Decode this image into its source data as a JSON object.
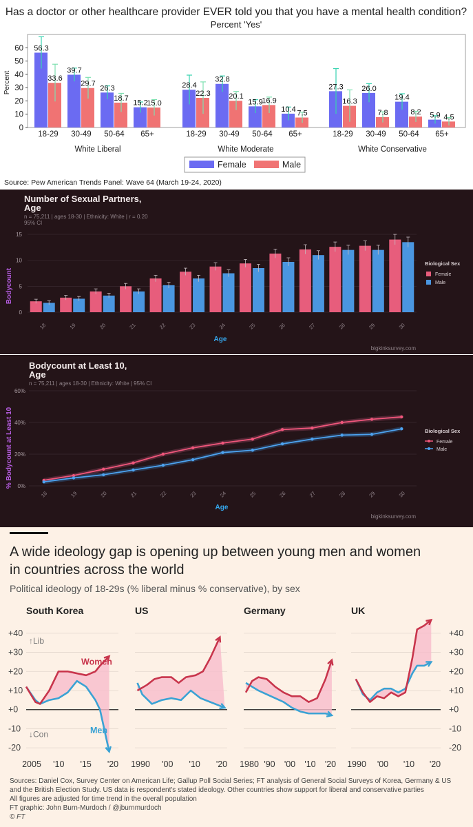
{
  "chart_data": [
    {
      "type": "bar",
      "title": "Has a doctor or other healthcare provider EVER told you that you have a mental health condition?",
      "subtitle": "Percent 'Yes'",
      "ylabel": "Percent",
      "ylim": [
        0,
        70
      ],
      "yticks": [
        0,
        10,
        20,
        30,
        40,
        50,
        60
      ],
      "groups": [
        "White Liberal",
        "White Moderate",
        "White Conservative"
      ],
      "categories": [
        "18-29",
        "30-49",
        "50-64",
        "65+"
      ],
      "series": [
        {
          "name": "Female",
          "color": "#6b6bf2",
          "values": [
            [
              56.3,
              39.7,
              26.3,
              15.2
            ],
            [
              28.4,
              32.8,
              15.9,
              10.4
            ],
            [
              27.3,
              26.0,
              19.4,
              5.9
            ]
          ],
          "labels": [
            [
              "56.3",
              "39.7",
              "26.3",
              "15.2"
            ],
            [
              "28.4",
              "32.8",
              "15.9",
              "10.4"
            ],
            [
              "27.3",
              "26.0",
              "19.4",
              "5.9"
            ]
          ],
          "err": [
            [
              12,
              5,
              5,
              4
            ],
            [
              11,
              6,
              5,
              5
            ],
            [
              17,
              7,
              6,
              3
            ]
          ]
        },
        {
          "name": "Male",
          "color": "#f07373",
          "values": [
            [
              33.6,
              29.7,
              18.7,
              15.0
            ],
            [
              22.3,
              20.1,
              16.9,
              7.5
            ],
            [
              16.3,
              7.8,
              8.2,
              4.5
            ]
          ],
          "labels": [
            [
              "33.6",
              "29.7",
              "18.7",
              "15.0"
            ],
            [
              "22.3",
              "20.1",
              "16.9",
              "7.5"
            ],
            [
              "16.3",
              "7.8",
              "8.2",
              "4.5"
            ]
          ],
          "err": [
            [
              14,
              8,
              7,
              6
            ],
            [
              12,
              7,
              6,
              4
            ],
            [
              12,
              4,
              4,
              3
            ]
          ]
        }
      ],
      "source": "Source: Pew American Trends Panel: Wave 64 (March 19-24, 2020)"
    },
    {
      "type": "bar",
      "title": "Number of Sexual Partners,",
      "title2": "Age",
      "subtitle": "n = 75,211  |  ages 18-30  |  Ethnicity: White  |  r = 0.20",
      "subtitle2": "95% CI",
      "xlabel": "Age",
      "ylabel": "Bodycount",
      "ylim": [
        0,
        17
      ],
      "yticks": [
        0,
        5,
        10,
        15
      ],
      "categories": [
        "18",
        "19",
        "20",
        "21",
        "22",
        "23",
        "24",
        "25",
        "26",
        "27",
        "28",
        "29",
        "30"
      ],
      "legend_title": "Biological Sex",
      "series": [
        {
          "name": "Female",
          "color": "#e75d7c",
          "values": [
            2.1,
            2.8,
            4.0,
            5.0,
            6.5,
            7.8,
            8.8,
            9.4,
            11.3,
            12.1,
            12.6,
            12.8,
            14.0
          ]
        },
        {
          "name": "Male",
          "color": "#4a96e0",
          "values": [
            1.8,
            2.6,
            3.2,
            4.0,
            5.2,
            6.5,
            7.5,
            8.5,
            9.7,
            11.0,
            12.0,
            12.0,
            13.5
          ]
        }
      ],
      "watermark": "bigkinksurvey.com"
    },
    {
      "type": "line",
      "title": "Bodycount at Least 10,",
      "title2": "Age",
      "subtitle": "n = 75,211  |  ages 18-30  |  Ethnicity: White  |  95% CI",
      "xlabel": "Age",
      "ylabel": "% Bodycount at Least 10",
      "ylim": [
        0,
        60
      ],
      "yticks": [
        "0%",
        "20%",
        "40%",
        "60%"
      ],
      "x": [
        "18",
        "19",
        "20",
        "21",
        "22",
        "23",
        "24",
        "25",
        "26",
        "27",
        "28",
        "29",
        "30"
      ],
      "legend_title": "Biological Sex",
      "series": [
        {
          "name": "Female",
          "color": "#f0567b",
          "values": [
            3.5,
            6.5,
            10.5,
            14.5,
            20,
            24,
            27,
            29.5,
            35.5,
            36.5,
            40,
            42,
            43.5
          ]
        },
        {
          "name": "Male",
          "color": "#4da3f0",
          "values": [
            2.5,
            5,
            7,
            10,
            13,
            16.5,
            21,
            22.5,
            26.5,
            29.5,
            32,
            32.5,
            36
          ]
        }
      ],
      "watermark": "bigkinksurvey.com"
    },
    {
      "type": "line",
      "title": "A wide ideology gap is opening up between young men and women in countries across the world",
      "title_line1": "A wide ideology gap is opening up between young men and women",
      "title_line2": "in countries across the world",
      "subtitle": "Political ideology of 18-29s (% liberal minus % conservative), by sex",
      "ylim": [
        -25,
        45
      ],
      "yticks": [
        "+40",
        "+30",
        "+20",
        "+10",
        "+0",
        "-10",
        "-20"
      ],
      "panels": [
        {
          "name": "South Korea",
          "xticks": [
            "2005",
            "'10",
            "'15",
            "'20"
          ],
          "xrange": [
            2003,
            2023
          ],
          "women": [
            [
              2003,
              12
            ],
            [
              2005,
              4
            ],
            [
              2006,
              3
            ],
            [
              2008,
              10
            ],
            [
              2010,
              20
            ],
            [
              2012,
              20
            ],
            [
              2014,
              19
            ],
            [
              2016,
              18
            ],
            [
              2018,
              20
            ],
            [
              2019,
              23
            ],
            [
              2021,
              28
            ]
          ],
          "men": [
            [
              2003,
              12
            ],
            [
              2005,
              5
            ],
            [
              2006,
              3
            ],
            [
              2008,
              5
            ],
            [
              2010,
              6
            ],
            [
              2012,
              9
            ],
            [
              2014,
              15
            ],
            [
              2016,
              12
            ],
            [
              2018,
              5
            ],
            [
              2019,
              0
            ],
            [
              2021,
              -22
            ]
          ]
        },
        {
          "name": "US",
          "xticks": [
            "1990",
            "'00",
            "'10",
            "'20"
          ],
          "xrange": [
            1985,
            2023
          ],
          "women": [
            [
              1986,
              10
            ],
            [
              1990,
              13
            ],
            [
              1993,
              16
            ],
            [
              1996,
              17
            ],
            [
              2000,
              17
            ],
            [
              2003,
              14
            ],
            [
              2006,
              17
            ],
            [
              2010,
              18
            ],
            [
              2013,
              20
            ],
            [
              2016,
              27
            ],
            [
              2020,
              38
            ]
          ],
          "men": [
            [
              1986,
              14
            ],
            [
              1988,
              8
            ],
            [
              1992,
              3
            ],
            [
              1996,
              5
            ],
            [
              2000,
              6
            ],
            [
              2004,
              5
            ],
            [
              2008,
              10
            ],
            [
              2012,
              6
            ],
            [
              2016,
              4
            ],
            [
              2020,
              2
            ],
            [
              2022,
              1
            ]
          ]
        },
        {
          "name": "Germany",
          "xticks": [
            "1980",
            "'90",
            "'00",
            "'10",
            "'20"
          ],
          "xrange": [
            1979,
            2023
          ],
          "women": [
            [
              1980,
              9
            ],
            [
              1983,
              15
            ],
            [
              1986,
              17
            ],
            [
              1990,
              16
            ],
            [
              1994,
              12
            ],
            [
              1998,
              9
            ],
            [
              2002,
              7
            ],
            [
              2006,
              7
            ],
            [
              2010,
              4
            ],
            [
              2014,
              6
            ],
            [
              2018,
              16
            ],
            [
              2021,
              26
            ]
          ],
          "men": [
            [
              1980,
              14
            ],
            [
              1983,
              12
            ],
            [
              1986,
              10
            ],
            [
              1990,
              8
            ],
            [
              1994,
              6
            ],
            [
              1998,
              4
            ],
            [
              2002,
              1
            ],
            [
              2006,
              -1
            ],
            [
              2010,
              -2
            ],
            [
              2014,
              -2
            ],
            [
              2018,
              -2
            ],
            [
              2021,
              -3
            ]
          ]
        },
        {
          "name": "UK",
          "xticks": [
            "1990",
            "'00",
            "'10",
            "'20"
          ],
          "xrange": [
            1985,
            2023
          ],
          "women": [
            [
              1987,
              16
            ],
            [
              1990,
              9
            ],
            [
              1993,
              4
            ],
            [
              1996,
              7
            ],
            [
              1999,
              6
            ],
            [
              2002,
              9
            ],
            [
              2005,
              7
            ],
            [
              2008,
              9
            ],
            [
              2011,
              27
            ],
            [
              2013,
              42
            ],
            [
              2016,
              44
            ],
            [
              2019,
              47
            ]
          ],
          "men": [
            [
              1987,
              16
            ],
            [
              1990,
              8
            ],
            [
              1993,
              5
            ],
            [
              1996,
              9
            ],
            [
              1999,
              11
            ],
            [
              2002,
              11
            ],
            [
              2005,
              9
            ],
            [
              2008,
              11
            ],
            [
              2011,
              19
            ],
            [
              2013,
              23
            ],
            [
              2016,
              23
            ],
            [
              2019,
              25
            ]
          ]
        }
      ],
      "labels": {
        "lib": "↑Lib",
        "con": "↓Con",
        "women": "Women",
        "men": "Men"
      },
      "colors": {
        "women": "#c8354c",
        "men": "#3aa2d4",
        "fill": "#f8bdcc"
      },
      "sources": [
        "Sources: Daniel Cox, Survey Center on American Life; Gallup Poll Social Series; FT analysis of General Social Surveys of Korea, Germany & US",
        "and the British Election Study. US data is respondent's stated ideology. Other countries show support for liberal and conservative parties",
        "All figures are adjusted for time trend in the overall population",
        "FT graphic: John Burn-Murdoch / @jburnmurdoch",
        "© FT"
      ]
    }
  ]
}
